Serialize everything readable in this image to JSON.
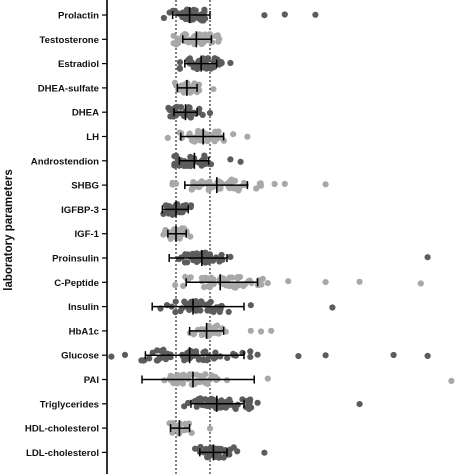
{
  "chart_data": {
    "type": "scatter",
    "title": "",
    "xlabel": "",
    "ylabel": "laboratory parameters",
    "xlim": [
      -1.0,
      5.5
    ],
    "reference_lines": [
      0.0,
      0.5
    ],
    "grid": false,
    "legend": "none",
    "colors": {
      "dark": "#5c5c5c",
      "light": "#a8a8a8",
      "axis": "#000000",
      "errorbar": "#000000"
    },
    "categories": [
      "Prolactin",
      "Testosterone",
      "Estradiol",
      "DHEA-sulfate",
      "DHEA",
      "LH",
      "Androstendion",
      "SHBG",
      "IGFBP-3",
      "IGF-1",
      "Proinsulin",
      "C-Peptide",
      "Insulin",
      "HbA1c",
      "Glucose",
      "PAI",
      "Triglycerides",
      "HDL-cholesterol",
      "LDL-cholesterol"
    ],
    "series": [
      {
        "category": "Prolactin",
        "shade": "dark",
        "mean": 0.2,
        "sd_low": -0.05,
        "sd_high": 0.5,
        "n": 40,
        "spread": 0.36,
        "outliers": [
          1.3,
          1.6,
          2.05
        ]
      },
      {
        "category": "Testosterone",
        "shade": "light",
        "mean": 0.3,
        "sd_low": 0.1,
        "sd_high": 0.52,
        "n": 40,
        "spread": 0.32,
        "outliers": []
      },
      {
        "category": "Estradiol",
        "shade": "dark",
        "mean": 0.37,
        "sd_low": 0.13,
        "sd_high": 0.6,
        "n": 40,
        "spread": 0.32,
        "outliers": [
          0.8
        ]
      },
      {
        "category": "DHEA-sulfate",
        "shade": "light",
        "mean": 0.16,
        "sd_low": 0.02,
        "sd_high": 0.31,
        "n": 30,
        "spread": 0.2,
        "outliers": [
          0.55
        ]
      },
      {
        "category": "DHEA",
        "shade": "dark",
        "mean": 0.14,
        "sd_low": -0.03,
        "sd_high": 0.31,
        "n": 30,
        "spread": 0.24,
        "outliers": [
          0.5
        ]
      },
      {
        "category": "LH",
        "shade": "light",
        "mean": 0.4,
        "sd_low": 0.07,
        "sd_high": 0.7,
        "n": 40,
        "spread": 0.42,
        "outliers": [
          -0.12,
          1.05
        ]
      },
      {
        "category": "Androstendion",
        "shade": "dark",
        "mean": 0.27,
        "sd_low": 0.05,
        "sd_high": 0.48,
        "n": 35,
        "spread": 0.28,
        "outliers": [
          0.8,
          0.95
        ]
      },
      {
        "category": "SHBG",
        "shade": "light",
        "mean": 0.6,
        "sd_low": 0.13,
        "sd_high": 1.05,
        "n": 50,
        "spread": 0.62,
        "outliers": [
          1.25,
          1.45,
          1.6,
          2.2,
          0.0
        ]
      },
      {
        "category": "IGFBP-3",
        "shade": "dark",
        "mean": 0.0,
        "sd_low": -0.2,
        "sd_high": 0.18,
        "n": 30,
        "spread": 0.26,
        "outliers": []
      },
      {
        "category": "IGF-1",
        "shade": "light",
        "mean": 0.0,
        "sd_low": -0.12,
        "sd_high": 0.15,
        "n": 25,
        "spread": 0.2,
        "outliers": []
      },
      {
        "category": "Proinsulin",
        "shade": "dark",
        "mean": 0.38,
        "sd_low": -0.1,
        "sd_high": 0.75,
        "n": 40,
        "spread": 0.32,
        "outliers": [
          0.8,
          3.7
        ]
      },
      {
        "category": "C-Peptide",
        "shade": "light",
        "mean": 0.65,
        "sd_low": 0.15,
        "sd_high": 1.2,
        "n": 55,
        "spread": 0.68,
        "outliers": [
          1.35,
          1.65,
          2.2,
          2.7,
          3.6
        ]
      },
      {
        "category": "Insulin",
        "shade": "dark",
        "mean": 0.25,
        "sd_low": -0.35,
        "sd_high": 1.0,
        "n": 45,
        "spread": 0.5,
        "outliers": [
          1.1,
          2.3
        ]
      },
      {
        "category": "HbA1c",
        "shade": "light",
        "mean": 0.45,
        "sd_low": 0.2,
        "sd_high": 0.7,
        "n": 30,
        "spread": 0.28,
        "outliers": [
          1.1,
          1.25,
          1.4
        ]
      },
      {
        "category": "Glucose",
        "shade": "dark",
        "mean": 0.2,
        "sd_low": -0.45,
        "sd_high": 1.0,
        "n": 60,
        "spread": 0.85,
        "outliers": [
          -0.75,
          -0.95,
          1.2,
          1.8,
          2.2,
          3.2,
          3.7
        ]
      },
      {
        "category": "PAI",
        "shade": "light",
        "mean": 0.25,
        "sd_low": -0.5,
        "sd_high": 1.15,
        "n": 45,
        "spread": 0.4,
        "outliers": [
          0.75,
          1.35,
          4.05
        ]
      },
      {
        "category": "Triglycerides",
        "shade": "dark",
        "mean": 0.6,
        "sd_low": 0.22,
        "sd_high": 1.0,
        "n": 50,
        "spread": 0.48,
        "outliers": [
          1.2,
          2.7
        ]
      },
      {
        "category": "HDL-cholesterol",
        "shade": "light",
        "mean": 0.05,
        "sd_low": -0.08,
        "sd_high": 0.2,
        "n": 20,
        "spread": 0.18,
        "outliers": [
          0.5
        ]
      },
      {
        "category": "LDL-cholesterol",
        "shade": "dark",
        "mean": 0.55,
        "sd_low": 0.35,
        "sd_high": 0.75,
        "n": 40,
        "spread": 0.3,
        "outliers": [
          0.9,
          1.3
        ]
      }
    ]
  }
}
